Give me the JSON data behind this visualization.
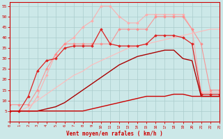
{
  "background_color": "#cce8e8",
  "grid_color": "#aacccc",
  "xlabel": "Vent moyen/en rafales ( km/h )",
  "xlabel_color": "#cc0000",
  "tick_color": "#cc0000",
  "ylim": [
    0,
    57
  ],
  "xlim": [
    0,
    23
  ],
  "yticks": [
    0,
    5,
    10,
    15,
    20,
    25,
    30,
    35,
    40,
    45,
    50,
    55
  ],
  "xticks": [
    0,
    1,
    2,
    3,
    4,
    5,
    6,
    7,
    8,
    9,
    10,
    11,
    12,
    13,
    14,
    15,
    16,
    17,
    18,
    19,
    20,
    21,
    22,
    23
  ],
  "lines": [
    {
      "x": [
        0,
        1,
        2,
        3,
        4,
        5,
        6,
        7,
        8,
        9,
        10,
        11,
        12,
        13,
        14,
        15,
        16,
        17,
        18,
        19,
        20,
        21,
        22,
        23
      ],
      "y": [
        5,
        5,
        5,
        12,
        22,
        32,
        37,
        40,
        45,
        48,
        55,
        55,
        50,
        47,
        47,
        51,
        51,
        51,
        51,
        51,
        44,
        14,
        14,
        14
      ],
      "color": "#ffaaaa",
      "lw": 0.8,
      "marker": "D",
      "markersize": 1.8,
      "alpha": 0.9
    },
    {
      "x": [
        0,
        1,
        2,
        3,
        4,
        5,
        6,
        7,
        8,
        9,
        10,
        11,
        12,
        13,
        14,
        15,
        16,
        17,
        18,
        19,
        20,
        21,
        22,
        23
      ],
      "y": [
        8,
        8,
        8,
        15,
        25,
        32,
        37,
        37,
        37,
        37,
        37,
        37,
        44,
        44,
        44,
        44,
        50,
        50,
        50,
        50,
        44,
        37,
        15,
        15
      ],
      "color": "#ff8888",
      "lw": 0.8,
      "marker": "D",
      "markersize": 1.8,
      "alpha": 0.85
    },
    {
      "x": [
        0,
        1,
        2,
        3,
        4,
        5,
        6,
        7,
        8,
        9,
        10,
        11,
        12,
        13,
        14,
        15,
        16,
        17,
        18,
        19,
        20,
        21,
        22,
        23
      ],
      "y": [
        5,
        5,
        7,
        10,
        13,
        16,
        19,
        22,
        24,
        27,
        29,
        31,
        33,
        35,
        36,
        37,
        38,
        39,
        40,
        41,
        42,
        43,
        44,
        44
      ],
      "color": "#ffbbbb",
      "lw": 0.9,
      "marker": null,
      "alpha": 0.9
    },
    {
      "x": [
        0,
        1,
        2,
        3,
        4,
        5,
        6,
        7,
        8,
        9,
        10,
        11,
        12,
        13,
        14,
        15,
        16,
        17,
        18,
        19,
        20,
        21,
        22,
        23
      ],
      "y": [
        5,
        5,
        12,
        24,
        29,
        30,
        35,
        36,
        36,
        36,
        44,
        37,
        36,
        36,
        36,
        37,
        41,
        41,
        41,
        40,
        37,
        13,
        13,
        13
      ],
      "color": "#dd2222",
      "lw": 0.9,
      "marker": "D",
      "markersize": 1.8,
      "alpha": 1.0
    },
    {
      "x": [
        0,
        1,
        2,
        3,
        4,
        5,
        6,
        7,
        8,
        9,
        10,
        11,
        12,
        13,
        14,
        15,
        16,
        17,
        18,
        19,
        20,
        21,
        22,
        23
      ],
      "y": [
        5,
        5,
        5,
        5,
        6,
        7,
        9,
        12,
        15,
        18,
        21,
        24,
        27,
        29,
        31,
        32,
        33,
        34,
        34,
        30,
        29,
        12,
        12,
        12
      ],
      "color": "#aa0000",
      "lw": 1.0,
      "marker": null,
      "alpha": 1.0
    },
    {
      "x": [
        0,
        1,
        2,
        3,
        4,
        5,
        6,
        7,
        8,
        9,
        10,
        11,
        12,
        13,
        14,
        15,
        16,
        17,
        18,
        19,
        20,
        21,
        22,
        23
      ],
      "y": [
        5,
        5,
        5,
        5,
        5,
        5,
        5,
        5,
        5,
        6,
        7,
        8,
        9,
        10,
        11,
        12,
        12,
        12,
        13,
        13,
        12,
        12,
        12,
        12
      ],
      "color": "#cc0000",
      "lw": 1.0,
      "marker": null,
      "alpha": 1.0
    }
  ]
}
